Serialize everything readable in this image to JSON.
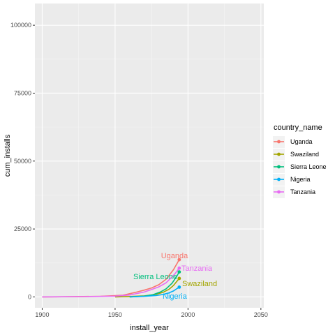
{
  "chart_data": {
    "type": "line",
    "xlabel": "install_year",
    "ylabel": "cum_installs",
    "xlim": [
      1895,
      2052
    ],
    "ylim": [
      -4000,
      108000
    ],
    "x_ticks": [
      1900,
      1950,
      2000,
      2050
    ],
    "x_tick_labels": [
      "1900",
      "1950",
      "2000",
      "2050"
    ],
    "y_ticks": [
      0,
      25000,
      50000,
      75000,
      100000
    ],
    "y_tick_labels": [
      "0",
      "25000",
      "50000",
      "75000",
      "100000"
    ],
    "grid": true,
    "panel_background": "#EBEBEB",
    "legend": {
      "title": "country_name",
      "placement": "right",
      "entries": [
        "Uganda",
        "Swaziland",
        "Sierra Leone",
        "Nigeria",
        "Tanzania"
      ]
    },
    "series": [
      {
        "name": "Uganda",
        "color": "#F8766D",
        "label": "Uganda",
        "points": [
          [
            1900,
            0
          ],
          [
            1920,
            80
          ],
          [
            1940,
            250
          ],
          [
            1955,
            600
          ],
          [
            1960,
            1200
          ],
          [
            1965,
            1800
          ],
          [
            1970,
            2500
          ],
          [
            1975,
            3300
          ],
          [
            1980,
            4500
          ],
          [
            1985,
            6500
          ],
          [
            1990,
            10000
          ],
          [
            1994,
            13700
          ]
        ]
      },
      {
        "name": "Swaziland",
        "color": "#A3A500",
        "label": "Swaziland",
        "points": [
          [
            1950,
            0
          ],
          [
            1960,
            150
          ],
          [
            1970,
            400
          ],
          [
            1978,
            900
          ],
          [
            1983,
            1700
          ],
          [
            1987,
            2800
          ],
          [
            1990,
            4200
          ],
          [
            1994,
            6800
          ]
        ]
      },
      {
        "name": "Sierra Leone",
        "color": "#00BF7D",
        "label": "Sierra Leone",
        "points": [
          [
            1960,
            0
          ],
          [
            1970,
            300
          ],
          [
            1976,
            800
          ],
          [
            1981,
            1800
          ],
          [
            1985,
            3000
          ],
          [
            1989,
            5000
          ],
          [
            1992,
            7300
          ],
          [
            1994,
            9200
          ]
        ]
      },
      {
        "name": "Nigeria",
        "color": "#00B0F6",
        "label": "Nigeria",
        "points": [
          [
            1960,
            0
          ],
          [
            1970,
            200
          ],
          [
            1978,
            500
          ],
          [
            1983,
            900
          ],
          [
            1987,
            1500
          ],
          [
            1990,
            2200
          ],
          [
            1994,
            3600
          ]
        ]
      },
      {
        "name": "Tanzania",
        "color": "#E76BF3",
        "label": "Tanzania",
        "points": [
          [
            1900,
            0
          ],
          [
            1930,
            100
          ],
          [
            1950,
            300
          ],
          [
            1960,
            700
          ],
          [
            1970,
            1800
          ],
          [
            1975,
            2700
          ],
          [
            1980,
            3700
          ],
          [
            1985,
            5200
          ],
          [
            1988,
            6800
          ],
          [
            1991,
            8500
          ],
          [
            1994,
            10600
          ]
        ]
      }
    ]
  }
}
